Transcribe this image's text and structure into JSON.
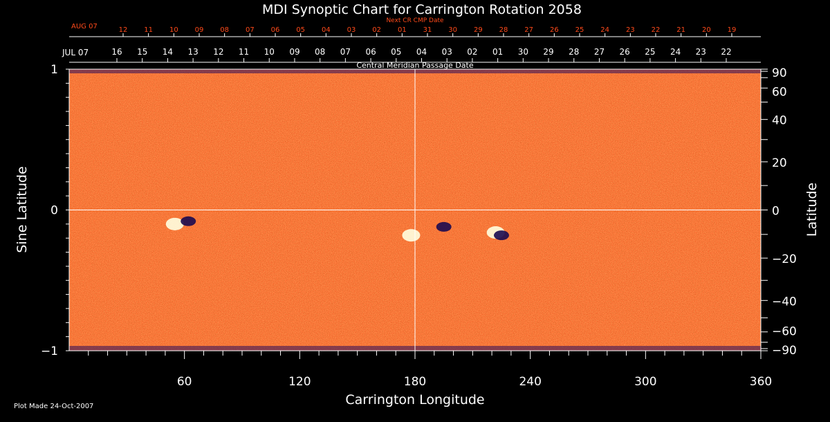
{
  "chart_data": {
    "type": "heatmap",
    "title": "MDI Synoptic Chart for Carrington Rotation 2058",
    "xlabel": "Carrington Longitude",
    "ylabel_left": "Sine Latitude",
    "ylabel_right": "Latitude",
    "xlim": [
      0,
      360
    ],
    "ylim_sine": [
      -1,
      1
    ],
    "x_ticks": [
      "60",
      "120",
      "180",
      "240",
      "300",
      "360"
    ],
    "y_ticks_left": [
      "1",
      "0",
      "−1"
    ],
    "y_ticks_right": [
      "90",
      "60",
      "40",
      "20",
      "0",
      "−20",
      "−40",
      "−60",
      "−90"
    ],
    "y_ticks_right_values": [
      90,
      60,
      40,
      20,
      0,
      -20,
      -40,
      -60,
      -90
    ],
    "next_cr_axis": {
      "title": "Next CR CMP Date",
      "start_label": "AUG 07",
      "dates": [
        "12",
        "11",
        "10",
        "09",
        "08",
        "07",
        "06",
        "05",
        "04",
        "03",
        "02",
        "01",
        "31",
        "30",
        "29",
        "28",
        "27",
        "26",
        "25",
        "24",
        "23",
        "22",
        "21",
        "20",
        "19"
      ],
      "color": "#ff4a1a"
    },
    "cmp_axis": {
      "title": "Central Meridian Passage Date",
      "start_label": "JUL 07",
      "dates": [
        "16",
        "15",
        "14",
        "13",
        "12",
        "11",
        "10",
        "09",
        "08",
        "07",
        "06",
        "05",
        "04",
        "03",
        "02",
        "01",
        "30",
        "29",
        "28",
        "27",
        "26",
        "25",
        "24",
        "23",
        "22"
      ],
      "color": "#ffffff"
    },
    "features": [
      {
        "name": "active region",
        "lon": 55,
        "sinlat": -0.1,
        "polarity": "positive"
      },
      {
        "name": "active region",
        "lon": 62,
        "sinlat": -0.08,
        "polarity": "negative"
      },
      {
        "name": "active region",
        "lon": 178,
        "sinlat": -0.18,
        "polarity": "positive"
      },
      {
        "name": "active region",
        "lon": 195,
        "sinlat": -0.12,
        "polarity": "negative"
      },
      {
        "name": "active region",
        "lon": 222,
        "sinlat": -0.16,
        "polarity": "positive"
      },
      {
        "name": "active region",
        "lon": 225,
        "sinlat": -0.18,
        "polarity": "negative"
      }
    ],
    "colors": {
      "background_field": "#ff5a12",
      "positive": "#ffffe0",
      "negative": "#1a0a50",
      "axes": "#ffffff"
    }
  },
  "footer": {
    "plot_made": "Plot Made 24-Oct-2007"
  }
}
